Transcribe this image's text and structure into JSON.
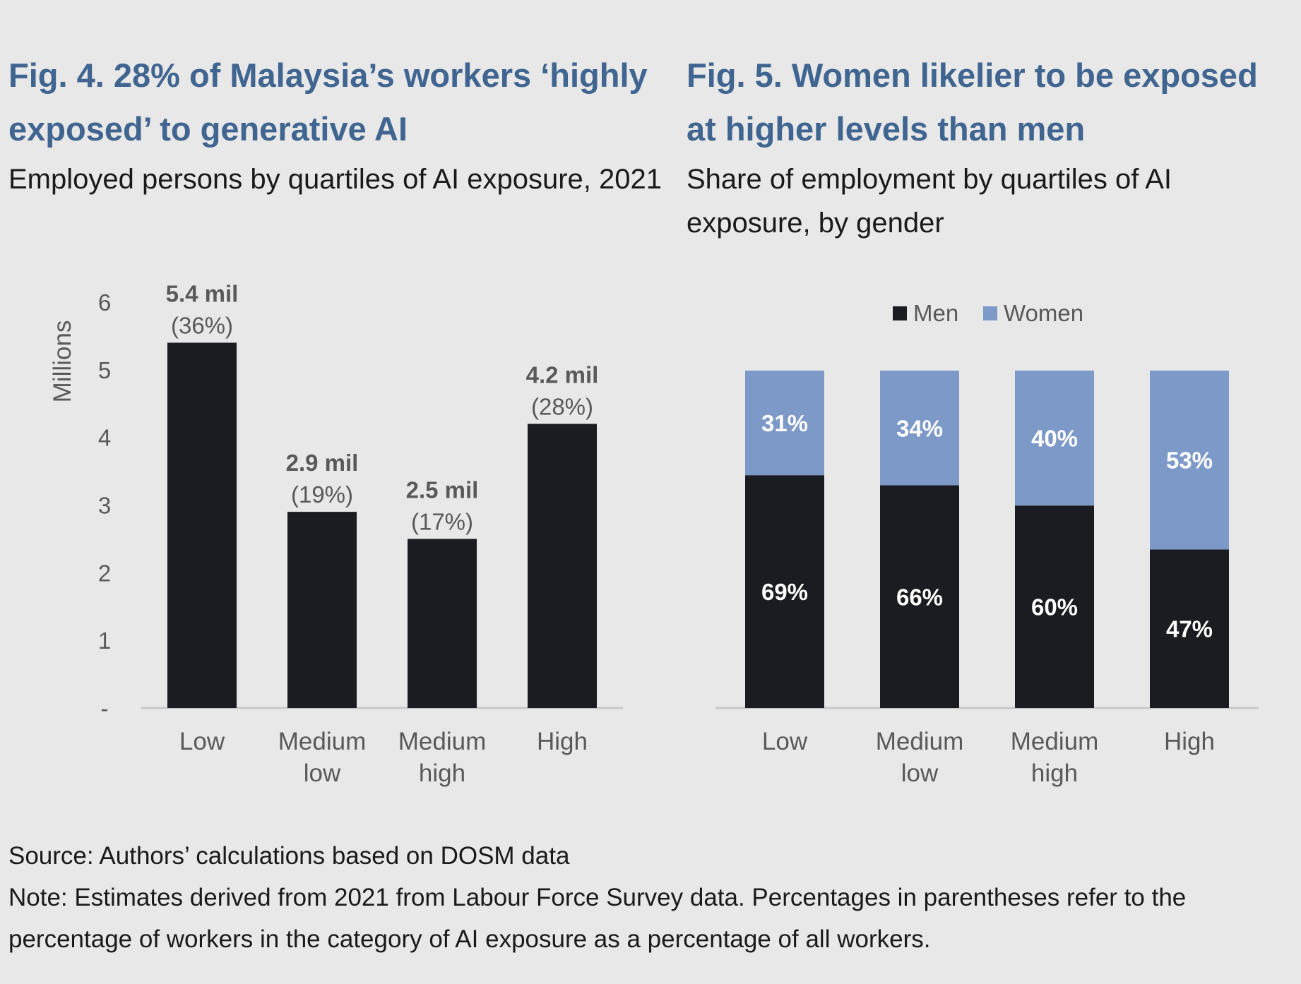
{
  "chart_data": [
    {
      "type": "bar",
      "title": "Fig. 4. 28% of Malaysia’s workers ‘highly exposed’ to generative AI",
      "subtitle": "Employed persons by quartiles of AI exposure, 2021",
      "ylabel": "Millions",
      "ylim": [
        0,
        6
      ],
      "yticks": [
        "-",
        "1",
        "2",
        "3",
        "4",
        "5",
        "6"
      ],
      "categories": [
        "Low",
        "Medium low",
        "Medium high",
        "High"
      ],
      "category_lines": [
        [
          "Low"
        ],
        [
          "Medium",
          "low"
        ],
        [
          "Medium",
          "high"
        ],
        [
          "High"
        ]
      ],
      "values": [
        5.4,
        2.9,
        2.5,
        4.2
      ],
      "value_labels": [
        "5.4 mil",
        "2.9 mil",
        "2.5 mil",
        "4.2 mil"
      ],
      "share_labels": [
        "(36%)",
        "(19%)",
        "(17%)",
        "(28%)"
      ],
      "bar_color": "#1b1c22",
      "grid": false
    },
    {
      "type": "bar",
      "stacked": true,
      "title": "Fig. 5. Women likelier to be exposed at higher levels than men",
      "subtitle": "Share of employment by quartiles of AI exposure, by gender",
      "categories": [
        "Low",
        "Medium low",
        "Medium high",
        "High"
      ],
      "category_lines": [
        [
          "Low"
        ],
        [
          "Medium",
          "low"
        ],
        [
          "Medium",
          "high"
        ],
        [
          "High"
        ]
      ],
      "legend_position": "top-center",
      "series": [
        {
          "name": "Men",
          "values": [
            69,
            66,
            60,
            47
          ],
          "labels": [
            "69%",
            "66%",
            "60%",
            "47%"
          ],
          "color": "#1b1c22"
        },
        {
          "name": "Women",
          "values": [
            31,
            34,
            40,
            53
          ],
          "labels": [
            "31%",
            "34%",
            "40%",
            "53%"
          ],
          "color": "#7d99c7"
        }
      ],
      "ylim": [
        0,
        100
      ],
      "grid": false
    }
  ],
  "footer": {
    "source": "Source: Authors’ calculations based on DOSM data",
    "note": "Note: Estimates derived from 2021 from Labour Force Survey data. Percentages in parentheses refer to the percentage of workers in the category of AI exposure as a percentage of all workers."
  },
  "colors": {
    "title": "#3f6590",
    "axis_text": "#595959",
    "label_text": "#595959",
    "background": "#e8e8e8",
    "axis_line": "#c8c8c8"
  }
}
